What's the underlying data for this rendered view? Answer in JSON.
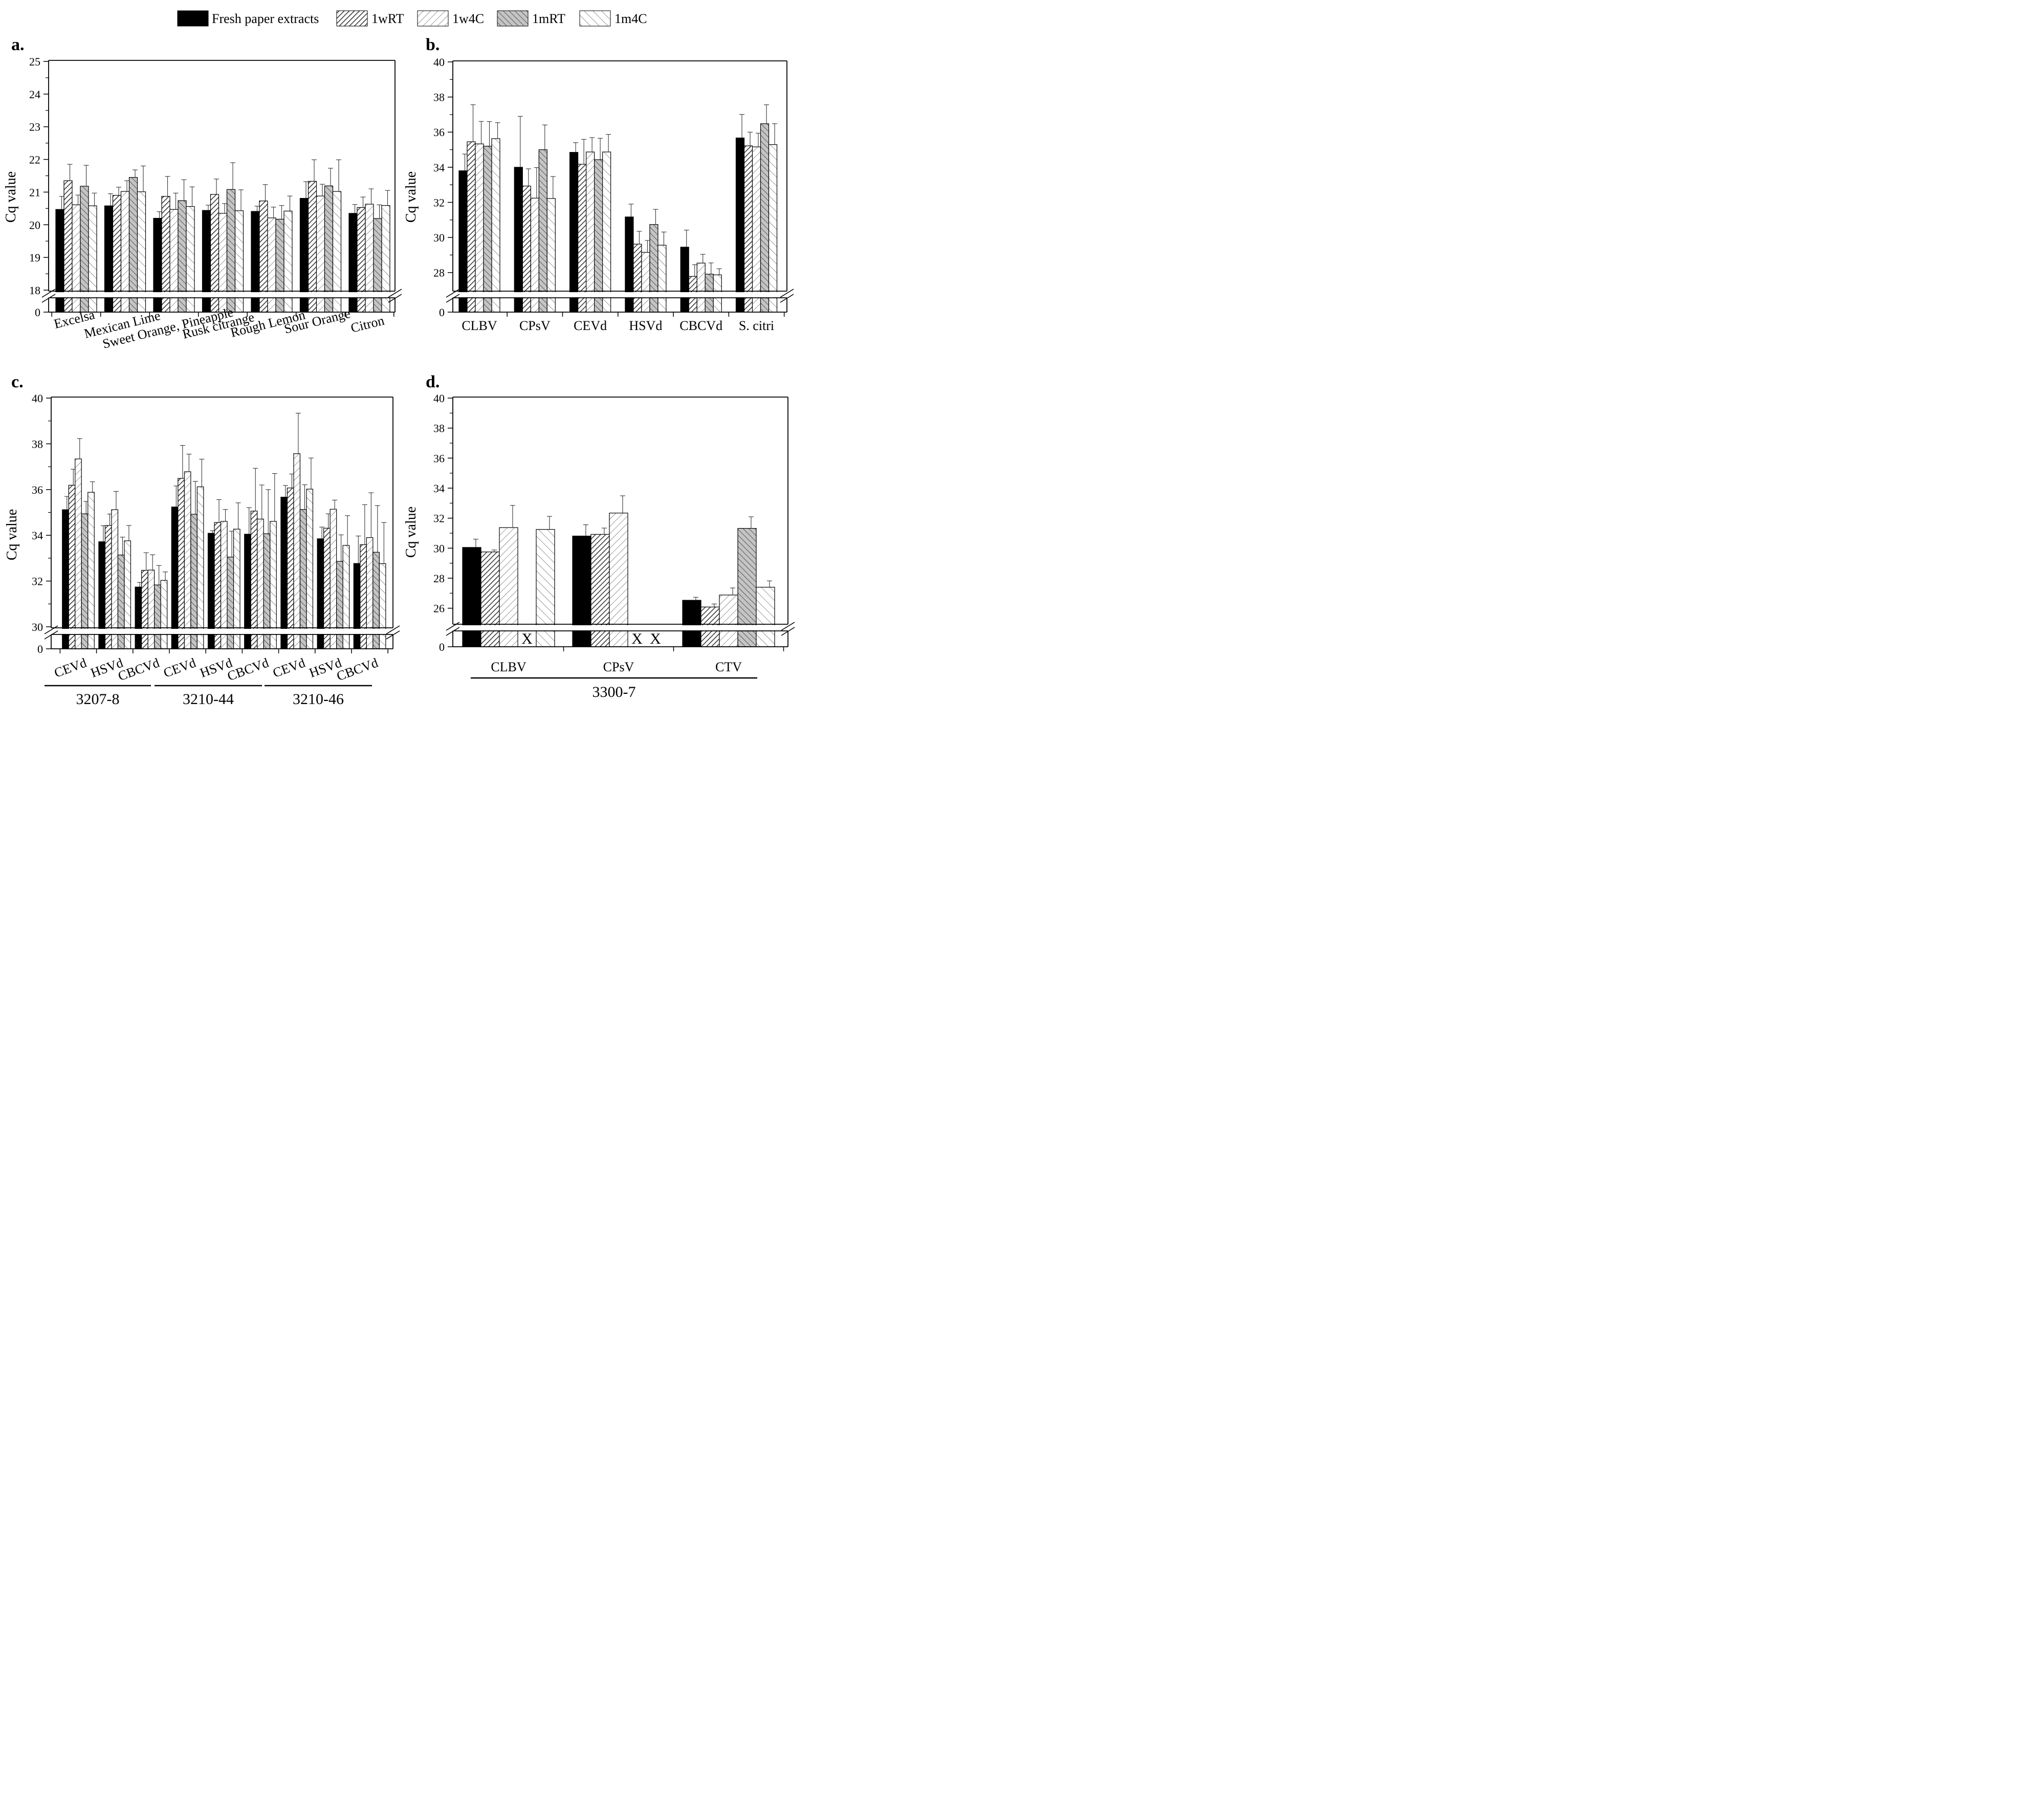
{
  "legend": {
    "entries": [
      {
        "label": "Fresh paper extracts",
        "pattern": "solid"
      },
      {
        "label": "1wRT",
        "pattern": "dense-back"
      },
      {
        "label": "1w4C",
        "pattern": "sparse-back"
      },
      {
        "label": "1mRT",
        "pattern": "grey-fwd"
      },
      {
        "label": "1m4C",
        "pattern": "sparse-fwd"
      }
    ]
  },
  "colors": {
    "solid": "#000000",
    "grey_fill": "#c4c4c4",
    "stroke": "#000000",
    "hatch_dense": "#3a3a3a",
    "hatch_sparse": "#555555"
  },
  "chart_data": [
    {
      "panel": "a.",
      "type": "bar",
      "ylabel": "Cq value",
      "ylim": [
        18,
        25
      ],
      "break": [
        0,
        18
      ],
      "yticks": [
        "25",
        "24",
        "23",
        "22",
        "21",
        "20",
        "19",
        "18",
        "0"
      ],
      "categories": [
        "Excelsa",
        "Mexican Lime",
        "Sweet Orange, Pineapple",
        "Rusk citrange",
        "Rough Lemon",
        "Sour Orange",
        "Citron"
      ],
      "series": [
        {
          "name": "Fresh paper extracts",
          "values": [
            20.47,
            20.58,
            20.2,
            20.44,
            20.41,
            20.81,
            20.35
          ],
          "errors": [
            0.4,
            0.37,
            0.2,
            0.16,
            0.16,
            0.51,
            0.27
          ]
        },
        {
          "name": "1wRT",
          "values": [
            21.35,
            20.9,
            20.87,
            20.93,
            20.73,
            21.33,
            20.53
          ],
          "errors": [
            0.5,
            0.25,
            0.61,
            0.47,
            0.5,
            0.66,
            0.32
          ]
        },
        {
          "name": "1w4C",
          "values": [
            20.61,
            21.02,
            20.47,
            20.35,
            20.21,
            20.88,
            20.63
          ],
          "errors": [
            0.3,
            0.33,
            0.5,
            0.3,
            0.33,
            0.36,
            0.47
          ]
        },
        {
          "name": "1mRT",
          "values": [
            21.18,
            21.45,
            20.74,
            21.08,
            20.17,
            21.19,
            20.19
          ],
          "errors": [
            0.64,
            0.23,
            0.64,
            0.82,
            0.42,
            0.54,
            0.42
          ]
        },
        {
          "name": "1m4C",
          "values": [
            20.58,
            21.01,
            20.56,
            20.43,
            20.42,
            21.02,
            20.59
          ],
          "errors": [
            0.39,
            0.79,
            0.6,
            0.64,
            0.46,
            0.97,
            0.46
          ]
        }
      ]
    },
    {
      "panel": "b.",
      "type": "bar",
      "ylabel": "Cq value",
      "ylim": [
        27,
        40
      ],
      "break": [
        0,
        27
      ],
      "yticks": [
        "40",
        "38",
        "36",
        "34",
        "32",
        "30",
        "28",
        "0"
      ],
      "categories": [
        "CLBV",
        "CPsV",
        "CEVd",
        "HSVd",
        "CBCVd",
        "S. citri"
      ],
      "series": [
        {
          "name": "Fresh paper extracts",
          "values": [
            33.8,
            34.0,
            34.85,
            31.17,
            29.45,
            35.67
          ],
          "errors": [
            0.95,
            2.9,
            0.55,
            0.73,
            0.97,
            1.34
          ]
        },
        {
          "name": "1wRT",
          "values": [
            35.45,
            32.93,
            34.17,
            29.62,
            27.78,
            35.22
          ],
          "errors": [
            2.11,
            0.98,
            1.42,
            0.73,
            0.67,
            0.78
          ]
        },
        {
          "name": "1w4C",
          "values": [
            35.33,
            32.24,
            34.87,
            29.15,
            28.54,
            35.16
          ],
          "errors": [
            1.28,
            1.74,
            0.82,
            0.68,
            0.5,
            0.78
          ]
        },
        {
          "name": "1mRT",
          "values": [
            35.2,
            35.0,
            34.43,
            30.74,
            27.91,
            36.48
          ],
          "errors": [
            1.4,
            1.41,
            1.22,
            0.86,
            0.64,
            1.08
          ]
        },
        {
          "name": "1m4C",
          "values": [
            35.63,
            32.22,
            34.87,
            29.56,
            27.87,
            35.29
          ],
          "errors": [
            0.91,
            1.25,
            1.0,
            0.75,
            0.35,
            1.19
          ]
        }
      ]
    },
    {
      "panel": "c.",
      "type": "bar",
      "ylabel": "Cq value",
      "ylim": [
        30,
        40
      ],
      "break": [
        0,
        30
      ],
      "yticks": [
        "40",
        "38",
        "36",
        "34",
        "32",
        "30",
        "0"
      ],
      "categories": [
        "CEVd",
        "HSVd",
        "CBCVd",
        "CEVd",
        "HSVd",
        "CBCVd",
        "CEVd",
        "HSVd",
        "CBCVd"
      ],
      "groups": [
        {
          "label": "3207-8",
          "span": [
            0,
            2
          ]
        },
        {
          "label": "3210-44",
          "span": [
            3,
            5
          ]
        },
        {
          "label": "3210-46",
          "span": [
            6,
            8
          ]
        }
      ],
      "series": [
        {
          "name": "Fresh paper extracts",
          "values": [
            35.12,
            33.72,
            31.74,
            35.24,
            34.09,
            34.05,
            35.67,
            33.85,
            32.77
          ],
          "errors": [
            0.58,
            0.7,
            0.2,
            0.92,
            0.11,
            1.16,
            0.51,
            0.51,
            1.2
          ]
        },
        {
          "name": "1wRT",
          "values": [
            36.19,
            34.43,
            32.47,
            36.49,
            34.56,
            35.06,
            36.07,
            34.31,
            33.59
          ],
          "errors": [
            0.7,
            0.5,
            0.77,
            1.44,
            1.0,
            1.87,
            0.61,
            0.63,
            1.75
          ]
        },
        {
          "name": "1w4C",
          "values": [
            37.34,
            35.12,
            32.48,
            36.78,
            34.61,
            34.71,
            37.57,
            35.14,
            33.9
          ],
          "errors": [
            0.89,
            0.8,
            0.67,
            0.77,
            0.52,
            1.49,
            1.77,
            0.4,
            1.96
          ]
        },
        {
          "name": "1mRT",
          "values": [
            34.94,
            33.14,
            31.83,
            34.92,
            33.05,
            34.07,
            35.13,
            32.86,
            33.26
          ],
          "errors": [
            0.54,
            0.78,
            0.85,
            1.44,
            1.13,
            1.93,
            1.08,
            1.16,
            2.04
          ]
        },
        {
          "name": "1m4C",
          "values": [
            35.88,
            33.76,
            32.03,
            36.12,
            34.27,
            34.61,
            36.02,
            33.56,
            32.76
          ],
          "errors": [
            0.46,
            0.67,
            0.37,
            1.21,
            1.15,
            2.09,
            1.36,
            1.3,
            1.8
          ]
        }
      ]
    },
    {
      "panel": "d.",
      "type": "bar",
      "ylabel": "Cq value",
      "ylim": [
        25,
        40
      ],
      "break": [
        0,
        25
      ],
      "yticks": [
        "40",
        "38",
        "36",
        "34",
        "32",
        "30",
        "28",
        "26",
        "0"
      ],
      "categories": [
        "CLBV",
        "CPsV",
        "CTV"
      ],
      "group_label": "3300-7",
      "missing_marker": "X",
      "series": [
        {
          "name": "Fresh paper extracts",
          "values": [
            30.05,
            30.81,
            26.53
          ],
          "errors": [
            0.55,
            0.75,
            0.2
          ]
        },
        {
          "name": "1wRT",
          "values": [
            29.75,
            30.92,
            26.08
          ],
          "errors": [
            0.13,
            0.42,
            0.2
          ]
        },
        {
          "name": "1w4C",
          "values": [
            31.37,
            32.34,
            26.88
          ],
          "errors": [
            1.48,
            1.15,
            0.47
          ]
        },
        {
          "name": "1mRT",
          "values": [
            null,
            null,
            31.32
          ],
          "errors": [
            null,
            null,
            0.77
          ]
        },
        {
          "name": "1m4C",
          "values": [
            31.25,
            null,
            27.4
          ],
          "errors": [
            0.87,
            null,
            0.42
          ]
        }
      ]
    }
  ]
}
